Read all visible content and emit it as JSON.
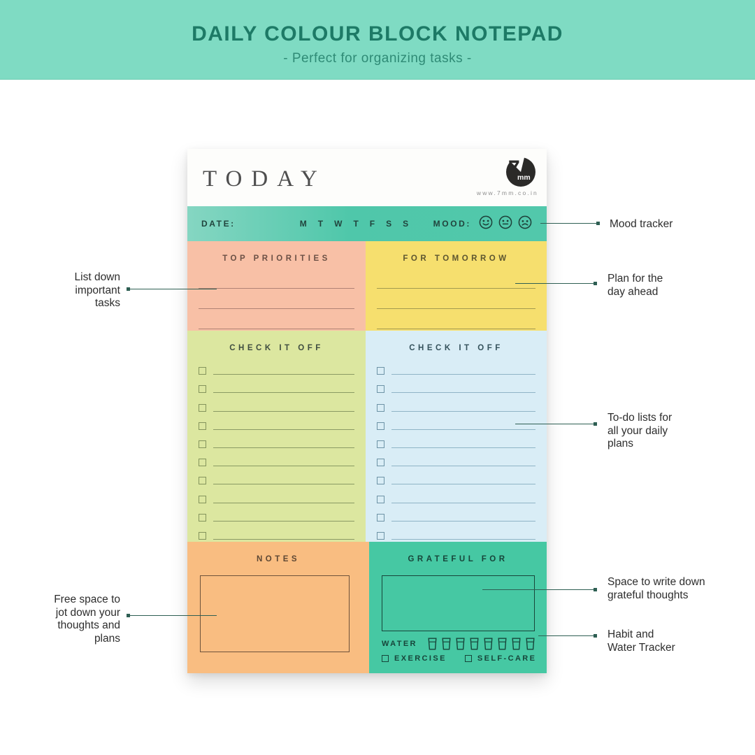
{
  "banner": {
    "title": "DAILY COLOUR BLOCK NOTEPAD",
    "subtitle": "-  Perfect for organizing tasks  -",
    "bg_color": "#7fdbc3",
    "title_color": "#1d7a66"
  },
  "notepad": {
    "header": {
      "title": "TODAY",
      "brand_seven": "7",
      "brand_mm": "mm",
      "website": "www.7mm.co.in"
    },
    "date_bar": {
      "date_label": "DATE:",
      "week_days": [
        "M",
        "T",
        "W",
        "T",
        "F",
        "S",
        "S"
      ],
      "mood_label": "MOOD:",
      "mood_icons": [
        "happy-face",
        "neutral-face",
        "sad-face"
      ]
    },
    "sections": {
      "top_priorities": {
        "title": "TOP PRIORITIES",
        "line_count": 3,
        "bg_color": "#f8c0a6"
      },
      "for_tomorrow": {
        "title": "FOR TOMORROW",
        "line_count": 3,
        "bg_color": "#f6df6e"
      },
      "check_left": {
        "title": "CHECK IT OFF",
        "row_count": 10,
        "bg_color": "#dce7a0"
      },
      "check_right": {
        "title": "CHECK IT OFF",
        "row_count": 10,
        "bg_color": "#d9edf6"
      },
      "notes": {
        "title": "NOTES",
        "bg_color": "#f9bd81"
      },
      "grateful": {
        "title": "GRATEFUL FOR",
        "water_label": "WATER",
        "water_cup_count": 8,
        "water_cup_icon": "water-cup",
        "habits": [
          "EXERCISE",
          "SELF-CARE"
        ],
        "bg_color": "#46c8a3"
      }
    }
  },
  "callouts": {
    "mood": "Mood tracker",
    "priorities": "List down\nimportant\ntasks",
    "tomorrow": "Plan for the\nday ahead",
    "todo": "To-do lists for\nall your daily\nplans",
    "grateful": "Space to write down\ngrateful thoughts",
    "notes": "Free space to\njot down your\nthoughts and\nplans",
    "water": "Habit and\nWater Tracker"
  },
  "colors": {
    "banner_mint": "#7fdbc3",
    "banner_text": "#1d7a66",
    "date_bar_teal": "#4fc7aa",
    "peach_block": "#f8c0a6",
    "yellow_block": "#f6df6e",
    "green_block": "#dce7a0",
    "blue_block": "#d9edf6",
    "orange_block": "#f9bd81",
    "teal_block": "#46c8a3",
    "callout_line": "#2e5f53",
    "ink_dark": "#21443d"
  }
}
